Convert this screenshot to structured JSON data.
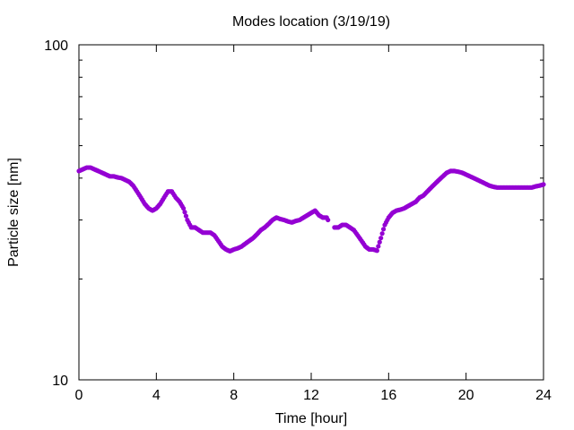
{
  "chart_data": {
    "type": "scatter",
    "title": "Modes location (3/19/19)",
    "xlabel": "Time [hour]",
    "ylabel": "Particle size [nm]",
    "xlim": [
      0,
      24
    ],
    "ylim": [
      10,
      100
    ],
    "yscale": "log",
    "grid": false,
    "legend": "none",
    "x_ticks": [
      "0",
      "4",
      "8",
      "12",
      "16",
      "20",
      "24"
    ],
    "y_ticks": [
      "10",
      "100"
    ],
    "marker_color": "#9400d3",
    "series": [
      {
        "x": [
          0.0,
          0.2,
          0.4,
          0.6,
          0.8,
          1.0,
          1.2,
          1.4,
          1.6,
          1.8,
          2.0,
          2.2,
          2.4,
          2.6,
          2.8,
          3.0,
          3.2,
          3.4,
          3.6,
          3.8,
          4.0,
          4.2,
          4.4,
          4.6,
          4.8,
          5.0,
          5.2,
          5.4,
          5.6,
          5.8,
          6.0,
          6.2,
          6.4,
          6.6,
          6.8,
          7.0,
          7.2,
          7.4,
          7.6,
          7.8,
          8.0,
          8.2,
          8.4,
          8.6,
          8.8,
          9.0,
          9.2,
          9.4,
          9.6,
          9.8,
          10.0,
          10.2,
          10.4,
          10.6,
          10.8,
          11.0,
          11.2,
          11.4,
          11.6,
          11.8,
          12.0,
          12.2,
          12.4,
          12.6,
          12.8,
          13.0,
          13.2,
          13.4,
          13.6,
          13.8,
          14.0,
          14.2,
          14.4,
          14.6,
          14.8,
          15.0,
          15.2,
          15.4,
          15.6,
          15.8,
          16.0,
          16.2,
          16.4,
          16.6,
          16.8,
          17.0,
          17.2,
          17.4,
          17.6,
          17.8,
          18.0,
          18.2,
          18.4,
          18.6,
          18.8,
          19.0,
          19.2,
          19.4,
          19.6,
          19.8,
          20.0,
          20.2,
          20.4,
          20.6,
          20.8,
          21.0,
          21.2,
          21.4,
          21.6,
          21.8,
          22.0,
          22.2,
          22.4,
          22.6,
          22.8,
          23.0,
          23.2,
          23.4,
          23.6,
          23.8,
          24.0
        ],
        "y": [
          42,
          42.5,
          43,
          43,
          42.5,
          42,
          41.5,
          41,
          40.5,
          40.5,
          40.2,
          40,
          39.5,
          39,
          38,
          36.5,
          35,
          33.5,
          32.5,
          32,
          32.5,
          33.5,
          35,
          36.5,
          36.5,
          35,
          34,
          32.5,
          30,
          28.5,
          28.5,
          28,
          27.5,
          27.5,
          27.5,
          27,
          26,
          25,
          24.5,
          24.2,
          24.5,
          24.7,
          25,
          25.5,
          26,
          26.5,
          27.2,
          28,
          28.5,
          29.2,
          30,
          30.5,
          30.2,
          30,
          29.7,
          29.5,
          29.8,
          30,
          30.5,
          31,
          31.5,
          32,
          31,
          30.5,
          30.5,
          29,
          28.5,
          28.5,
          29,
          29,
          28.5,
          28,
          27,
          26,
          25,
          24.5,
          24.5,
          24.3,
          26.5,
          29,
          30.5,
          31.5,
          32,
          32.2,
          32.5,
          33,
          33.5,
          34,
          35,
          35.5,
          36.5,
          37.5,
          38.5,
          39.5,
          40.5,
          41.5,
          42,
          42,
          41.8,
          41.5,
          41,
          40.5,
          40,
          39.5,
          39,
          38.5,
          38,
          37.7,
          37.5,
          37.5,
          37.5,
          37.5,
          37.5,
          37.5,
          37.5,
          37.5,
          37.5,
          37.5,
          37.8,
          38,
          38.3
        ]
      }
    ]
  }
}
